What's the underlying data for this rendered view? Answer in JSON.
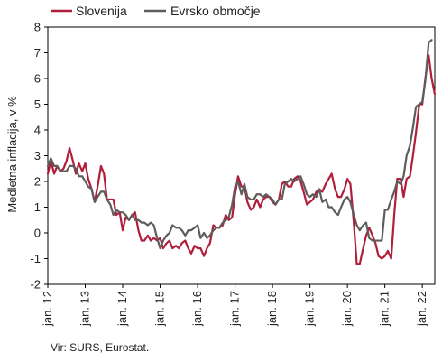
{
  "colors": {
    "slovenija": "#b01e3b",
    "evrsko": "#5d5d5d",
    "axis": "#000000"
  },
  "source": "Vir: SURS, Eurostat.",
  "chart_data": {
    "type": "line",
    "ylabel": "Medletna inflacija, v %",
    "xlabel": "",
    "ylim": [
      -2,
      8
    ],
    "yticks": [
      -2,
      -1,
      0,
      1,
      2,
      3,
      4,
      5,
      6,
      7,
      8
    ],
    "xlim": [
      2012.0,
      2022.333
    ],
    "xticks": [
      {
        "x": 2012,
        "label": "jan. 12"
      },
      {
        "x": 2013,
        "label": "jan. 13"
      },
      {
        "x": 2014,
        "label": "jan. 14"
      },
      {
        "x": 2015,
        "label": "jan. 15"
      },
      {
        "x": 2016,
        "label": "jan. 16"
      },
      {
        "x": 2017,
        "label": "jan. 17"
      },
      {
        "x": 2018,
        "label": "jan. 18"
      },
      {
        "x": 2019,
        "label": "jan. 19"
      },
      {
        "x": 2020,
        "label": "jan. 20"
      },
      {
        "x": 2021,
        "label": "jan. 21"
      },
      {
        "x": 2022,
        "label": "jan. 22"
      }
    ],
    "grid": false,
    "legend_position": "top-left",
    "series": [
      {
        "name": "Slovenija",
        "points": [
          [
            2012.0,
            2.3
          ],
          [
            2012.08,
            2.8
          ],
          [
            2012.17,
            2.3
          ],
          [
            2012.25,
            2.6
          ],
          [
            2012.33,
            2.4
          ],
          [
            2012.42,
            2.5
          ],
          [
            2012.5,
            2.8
          ],
          [
            2012.58,
            3.3
          ],
          [
            2012.67,
            2.8
          ],
          [
            2012.75,
            2.3
          ],
          [
            2012.83,
            2.7
          ],
          [
            2012.92,
            2.4
          ],
          [
            2013.0,
            2.7
          ],
          [
            2013.08,
            2.1
          ],
          [
            2013.17,
            1.7
          ],
          [
            2013.25,
            1.2
          ],
          [
            2013.33,
            1.8
          ],
          [
            2013.42,
            2.6
          ],
          [
            2013.5,
            2.3
          ],
          [
            2013.58,
            1.3
          ],
          [
            2013.67,
            1.3
          ],
          [
            2013.75,
            1.3
          ],
          [
            2013.83,
            0.7
          ],
          [
            2013.92,
            0.8
          ],
          [
            2014.0,
            0.1
          ],
          [
            2014.08,
            0.6
          ],
          [
            2014.17,
            0.5
          ],
          [
            2014.25,
            0.7
          ],
          [
            2014.33,
            0.8
          ],
          [
            2014.42,
            0.1
          ],
          [
            2014.5,
            -0.3
          ],
          [
            2014.58,
            -0.3
          ],
          [
            2014.67,
            -0.1
          ],
          [
            2014.75,
            -0.3
          ],
          [
            2014.83,
            -0.2
          ],
          [
            2014.92,
            -0.3
          ],
          [
            2015.0,
            -0.2
          ],
          [
            2015.08,
            -0.6
          ],
          [
            2015.17,
            -0.4
          ],
          [
            2015.25,
            -0.3
          ],
          [
            2015.33,
            -0.6
          ],
          [
            2015.42,
            -0.5
          ],
          [
            2015.5,
            -0.6
          ],
          [
            2015.58,
            -0.4
          ],
          [
            2015.67,
            -0.3
          ],
          [
            2015.75,
            -0.6
          ],
          [
            2015.83,
            -0.8
          ],
          [
            2015.92,
            -0.5
          ],
          [
            2016.0,
            -0.6
          ],
          [
            2016.08,
            -0.6
          ],
          [
            2016.17,
            -0.9
          ],
          [
            2016.25,
            -0.6
          ],
          [
            2016.33,
            -0.4
          ],
          [
            2016.42,
            0.3
          ],
          [
            2016.5,
            0.2
          ],
          [
            2016.58,
            0.2
          ],
          [
            2016.67,
            0.3
          ],
          [
            2016.75,
            0.7
          ],
          [
            2016.83,
            0.5
          ],
          [
            2016.92,
            0.6
          ],
          [
            2017.0,
            1.5
          ],
          [
            2017.08,
            2.2
          ],
          [
            2017.17,
            1.8
          ],
          [
            2017.25,
            1.8
          ],
          [
            2017.33,
            1.2
          ],
          [
            2017.42,
            0.9
          ],
          [
            2017.5,
            1.0
          ],
          [
            2017.58,
            1.3
          ],
          [
            2017.67,
            1.0
          ],
          [
            2017.75,
            1.3
          ],
          [
            2017.83,
            1.4
          ],
          [
            2017.92,
            1.4
          ],
          [
            2018.0,
            1.2
          ],
          [
            2018.08,
            1.1
          ],
          [
            2018.17,
            1.3
          ],
          [
            2018.25,
            1.9
          ],
          [
            2018.33,
            2.0
          ],
          [
            2018.42,
            1.8
          ],
          [
            2018.5,
            1.8
          ],
          [
            2018.58,
            2.1
          ],
          [
            2018.67,
            2.2
          ],
          [
            2018.75,
            2.0
          ],
          [
            2018.83,
            1.6
          ],
          [
            2018.92,
            1.1
          ],
          [
            2019.0,
            1.2
          ],
          [
            2019.08,
            1.3
          ],
          [
            2019.17,
            1.6
          ],
          [
            2019.25,
            1.7
          ],
          [
            2019.33,
            1.6
          ],
          [
            2019.42,
            1.9
          ],
          [
            2019.5,
            2.1
          ],
          [
            2019.58,
            2.3
          ],
          [
            2019.67,
            1.7
          ],
          [
            2019.75,
            1.4
          ],
          [
            2019.83,
            1.4
          ],
          [
            2019.92,
            1.7
          ],
          [
            2020.0,
            2.1
          ],
          [
            2020.08,
            1.9
          ],
          [
            2020.17,
            0.4
          ],
          [
            2020.25,
            -1.2
          ],
          [
            2020.33,
            -1.2
          ],
          [
            2020.42,
            -0.6
          ],
          [
            2020.5,
            -0.1
          ],
          [
            2020.58,
            0.2
          ],
          [
            2020.67,
            -0.1
          ],
          [
            2020.75,
            -0.4
          ],
          [
            2020.83,
            -0.9
          ],
          [
            2020.92,
            -1.0
          ],
          [
            2021.0,
            -0.9
          ],
          [
            2021.08,
            -0.7
          ],
          [
            2021.17,
            -1.0
          ],
          [
            2021.25,
            0.7
          ],
          [
            2021.33,
            2.1
          ],
          [
            2021.42,
            2.1
          ],
          [
            2021.5,
            1.4
          ],
          [
            2021.58,
            2.1
          ],
          [
            2021.67,
            2.2
          ],
          [
            2021.75,
            3.0
          ],
          [
            2021.83,
            3.9
          ],
          [
            2021.92,
            5.0
          ],
          [
            2022.0,
            5.0
          ],
          [
            2022.08,
            6.0
          ],
          [
            2022.17,
            6.9
          ],
          [
            2022.25,
            6.0
          ],
          [
            2022.33,
            5.4
          ]
        ]
      },
      {
        "name": "Evrsko območje",
        "points": [
          [
            2012.0,
            2.6
          ],
          [
            2012.08,
            2.9
          ],
          [
            2012.17,
            2.6
          ],
          [
            2012.25,
            2.6
          ],
          [
            2012.33,
            2.4
          ],
          [
            2012.42,
            2.4
          ],
          [
            2012.5,
            2.4
          ],
          [
            2012.58,
            2.6
          ],
          [
            2012.67,
            2.6
          ],
          [
            2012.75,
            2.5
          ],
          [
            2012.83,
            2.2
          ],
          [
            2012.92,
            2.2
          ],
          [
            2013.0,
            2.0
          ],
          [
            2013.08,
            1.8
          ],
          [
            2013.17,
            1.7
          ],
          [
            2013.25,
            1.2
          ],
          [
            2013.33,
            1.4
          ],
          [
            2013.42,
            1.6
          ],
          [
            2013.5,
            1.6
          ],
          [
            2013.58,
            1.3
          ],
          [
            2013.67,
            1.1
          ],
          [
            2013.75,
            0.7
          ],
          [
            2013.83,
            0.9
          ],
          [
            2013.92,
            0.8
          ],
          [
            2014.0,
            0.8
          ],
          [
            2014.08,
            0.7
          ],
          [
            2014.17,
            0.5
          ],
          [
            2014.25,
            0.7
          ],
          [
            2014.33,
            0.5
          ],
          [
            2014.42,
            0.5
          ],
          [
            2014.5,
            0.4
          ],
          [
            2014.58,
            0.4
          ],
          [
            2014.67,
            0.3
          ],
          [
            2014.75,
            0.4
          ],
          [
            2014.83,
            0.3
          ],
          [
            2014.92,
            -0.2
          ],
          [
            2015.0,
            -0.6
          ],
          [
            2015.08,
            -0.3
          ],
          [
            2015.17,
            -0.1
          ],
          [
            2015.25,
            0.0
          ],
          [
            2015.33,
            0.3
          ],
          [
            2015.42,
            0.2
          ],
          [
            2015.5,
            0.2
          ],
          [
            2015.58,
            0.1
          ],
          [
            2015.67,
            -0.1
          ],
          [
            2015.75,
            0.1
          ],
          [
            2015.83,
            0.1
          ],
          [
            2015.92,
            0.2
          ],
          [
            2016.0,
            0.3
          ],
          [
            2016.08,
            -0.2
          ],
          [
            2016.17,
            0.0
          ],
          [
            2016.25,
            -0.2
          ],
          [
            2016.33,
            -0.1
          ],
          [
            2016.42,
            0.1
          ],
          [
            2016.5,
            0.2
          ],
          [
            2016.58,
            0.2
          ],
          [
            2016.67,
            0.4
          ],
          [
            2016.75,
            0.5
          ],
          [
            2016.83,
            0.6
          ],
          [
            2016.92,
            1.1
          ],
          [
            2017.0,
            1.8
          ],
          [
            2017.08,
            2.0
          ],
          [
            2017.17,
            1.5
          ],
          [
            2017.25,
            1.9
          ],
          [
            2017.33,
            1.4
          ],
          [
            2017.42,
            1.3
          ],
          [
            2017.5,
            1.3
          ],
          [
            2017.58,
            1.5
          ],
          [
            2017.67,
            1.5
          ],
          [
            2017.75,
            1.4
          ],
          [
            2017.83,
            1.5
          ],
          [
            2017.92,
            1.4
          ],
          [
            2018.0,
            1.3
          ],
          [
            2018.08,
            1.1
          ],
          [
            2018.17,
            1.3
          ],
          [
            2018.25,
            1.3
          ],
          [
            2018.33,
            1.9
          ],
          [
            2018.42,
            2.0
          ],
          [
            2018.5,
            2.1
          ],
          [
            2018.58,
            2.0
          ],
          [
            2018.67,
            2.1
          ],
          [
            2018.75,
            2.2
          ],
          [
            2018.83,
            1.9
          ],
          [
            2018.92,
            1.5
          ],
          [
            2019.0,
            1.4
          ],
          [
            2019.08,
            1.5
          ],
          [
            2019.17,
            1.4
          ],
          [
            2019.25,
            1.7
          ],
          [
            2019.33,
            1.2
          ],
          [
            2019.42,
            1.3
          ],
          [
            2019.5,
            1.0
          ],
          [
            2019.58,
            1.0
          ],
          [
            2019.67,
            0.8
          ],
          [
            2019.75,
            0.7
          ],
          [
            2019.83,
            1.0
          ],
          [
            2019.92,
            1.3
          ],
          [
            2020.0,
            1.4
          ],
          [
            2020.08,
            1.2
          ],
          [
            2020.17,
            0.7
          ],
          [
            2020.25,
            0.3
          ],
          [
            2020.33,
            0.1
          ],
          [
            2020.42,
            0.3
          ],
          [
            2020.5,
            0.4
          ],
          [
            2020.58,
            -0.2
          ],
          [
            2020.67,
            -0.3
          ],
          [
            2020.75,
            -0.3
          ],
          [
            2020.83,
            -0.3
          ],
          [
            2020.92,
            -0.3
          ],
          [
            2021.0,
            0.9
          ],
          [
            2021.08,
            0.9
          ],
          [
            2021.17,
            1.3
          ],
          [
            2021.25,
            1.6
          ],
          [
            2021.33,
            2.0
          ],
          [
            2021.42,
            1.9
          ],
          [
            2021.5,
            2.2
          ],
          [
            2021.58,
            3.0
          ],
          [
            2021.67,
            3.4
          ],
          [
            2021.75,
            4.1
          ],
          [
            2021.83,
            4.9
          ],
          [
            2021.92,
            5.0
          ],
          [
            2022.0,
            5.1
          ],
          [
            2022.08,
            5.9
          ],
          [
            2022.17,
            7.4
          ],
          [
            2022.25,
            7.5
          ]
        ]
      }
    ]
  }
}
